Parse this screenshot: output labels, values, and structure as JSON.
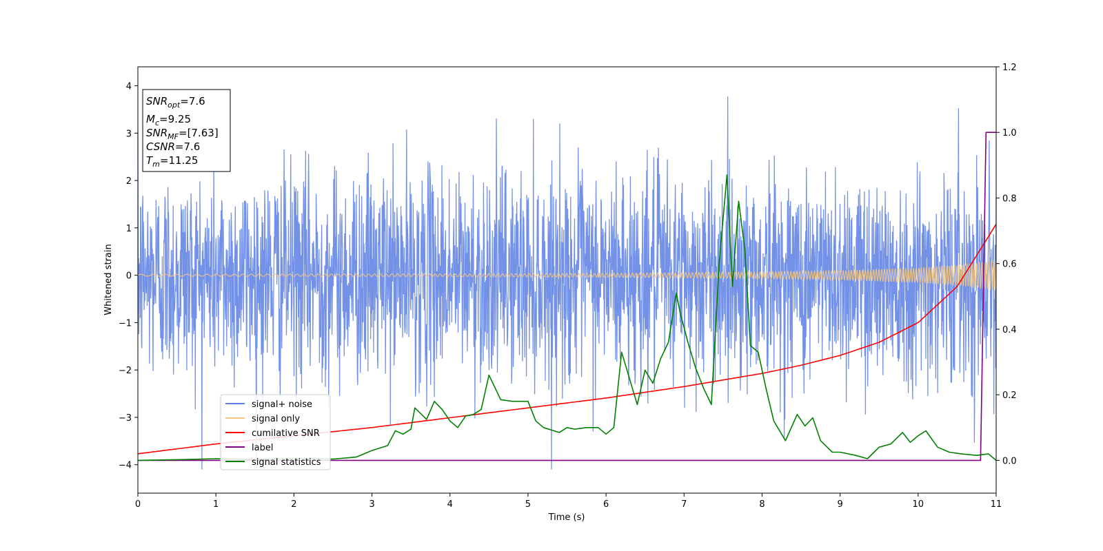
{
  "chart_data": {
    "type": "line",
    "xlabel": "Time (s)",
    "ylabel": "Whitened strain",
    "xlim": [
      0,
      11
    ],
    "ylim": [
      -4.6,
      4.4
    ],
    "y2lim": [
      -0.1,
      1.2
    ],
    "xticks": [
      "0",
      "1",
      "2",
      "3",
      "4",
      "5",
      "6",
      "7",
      "8",
      "9",
      "10",
      "11"
    ],
    "yticks": [
      "−4",
      "−3",
      "−2",
      "−1",
      "0",
      "1",
      "2",
      "3",
      "4"
    ],
    "y2ticks": [
      "0.0",
      "0.2",
      "0.4",
      "0.6",
      "0.8",
      "1.0",
      "1.2"
    ],
    "grid": false,
    "legend_location": "lower-left",
    "info_box": {
      "snr_opt": {
        "sym": "SNR",
        "sub": "opt",
        "val": "=7.6"
      },
      "mc": {
        "sym": "M",
        "sub": "c",
        "val": "=9.25"
      },
      "snr_mf": {
        "sym": "SNR",
        "sub": "MF",
        "val": "=[7.63]"
      },
      "csnr": {
        "sym": "CSNR",
        "sub": "",
        "val": "=7.6"
      },
      "tm": {
        "sym": "T",
        "sub": "m",
        "val": "=11.25"
      }
    },
    "series": [
      {
        "name": "signal+ noise",
        "color": "#5b7fe3",
        "axis": "left",
        "description": "whitened noisy strain, approx. gaussian with sigma ~1.1, peaks to about ±4",
        "amplitude_range": [
          -4.1,
          3.9
        ]
      },
      {
        "name": "signal only",
        "color": "#f5c77e",
        "axis": "left",
        "x_envelope": [
          0,
          2,
          4,
          6,
          8,
          9,
          10,
          10.5,
          11
        ],
        "amplitude_envelope": [
          0.02,
          0.025,
          0.03,
          0.04,
          0.07,
          0.1,
          0.16,
          0.22,
          0.33
        ]
      },
      {
        "name": "cumilative SNR",
        "color": "#ff0000",
        "axis": "right",
        "x": [
          0,
          1,
          2,
          3,
          4,
          5,
          6,
          7,
          8,
          8.5,
          9,
          9.5,
          10,
          10.5,
          11
        ],
        "values": [
          0.02,
          0.05,
          0.075,
          0.1,
          0.13,
          0.16,
          0.19,
          0.225,
          0.265,
          0.29,
          0.32,
          0.36,
          0.42,
          0.53,
          0.72
        ]
      },
      {
        "name": "label",
        "color": "#800080",
        "axis": "right",
        "x": [
          0,
          10.8,
          10.87,
          11
        ],
        "values": [
          0.0,
          0.0,
          1.0,
          1.0
        ]
      },
      {
        "name": "signal statistics",
        "color": "#008000",
        "axis": "right",
        "x": [
          0,
          0.5,
          1,
          1.5,
          2,
          2.5,
          2.8,
          3.0,
          3.2,
          3.3,
          3.4,
          3.5,
          3.55,
          3.7,
          3.8,
          3.9,
          4.0,
          4.1,
          4.2,
          4.3,
          4.4,
          4.5,
          4.55,
          4.65,
          4.8,
          5.0,
          5.1,
          5.2,
          5.4,
          5.5,
          5.6,
          5.75,
          5.9,
          6.0,
          6.1,
          6.2,
          6.25,
          6.4,
          6.5,
          6.6,
          6.7,
          6.8,
          6.9,
          6.95,
          7.05,
          7.15,
          7.25,
          7.35,
          7.45,
          7.55,
          7.62,
          7.7,
          7.78,
          7.85,
          7.95,
          8.05,
          8.15,
          8.3,
          8.45,
          8.55,
          8.65,
          8.75,
          8.9,
          9.0,
          9.2,
          9.35,
          9.5,
          9.65,
          9.8,
          9.9,
          10.0,
          10.1,
          10.25,
          10.4,
          10.55,
          10.75,
          10.9,
          11.0
        ],
        "values": [
          0.0,
          0.002,
          0.005,
          0.003,
          0.006,
          0.004,
          0.01,
          0.03,
          0.045,
          0.09,
          0.08,
          0.095,
          0.16,
          0.125,
          0.18,
          0.155,
          0.12,
          0.1,
          0.135,
          0.14,
          0.155,
          0.26,
          0.235,
          0.185,
          0.18,
          0.18,
          0.12,
          0.1,
          0.085,
          0.1,
          0.095,
          0.1,
          0.1,
          0.08,
          0.1,
          0.33,
          0.29,
          0.17,
          0.275,
          0.235,
          0.31,
          0.36,
          0.51,
          0.45,
          0.36,
          0.28,
          0.22,
          0.17,
          0.6,
          0.87,
          0.53,
          0.79,
          0.64,
          0.35,
          0.33,
          0.22,
          0.12,
          0.06,
          0.14,
          0.105,
          0.13,
          0.06,
          0.025,
          0.025,
          0.015,
          0.005,
          0.04,
          0.05,
          0.085,
          0.055,
          0.075,
          0.09,
          0.04,
          0.025,
          0.02,
          0.015,
          0.02,
          0.0
        ]
      }
    ]
  }
}
